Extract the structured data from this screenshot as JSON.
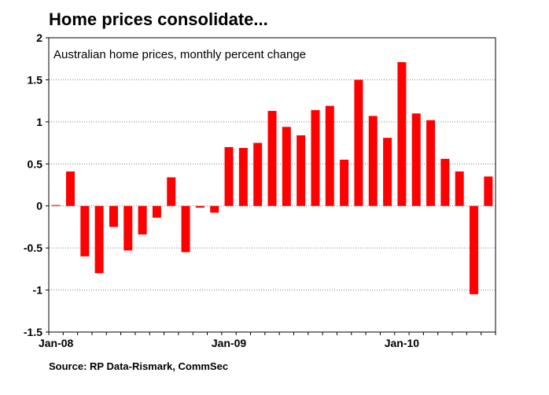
{
  "chart_data": {
    "type": "bar",
    "title": "Home prices consolidate...",
    "subtitle": "Australian home prices, monthly percent change",
    "source": "Source: RP Data-Rismark, CommSec",
    "xlabel": "",
    "ylabel": "",
    "ylim": [
      -1.5,
      2
    ],
    "yticks": [
      2,
      1.5,
      1,
      0.5,
      0,
      -0.5,
      -1,
      -1.5
    ],
    "ytick_labels": [
      "2",
      "1.5",
      "1",
      "0.5",
      "0",
      "-0.5",
      "-1",
      "-1.5"
    ],
    "grid": true,
    "bar_color": "#ff0000",
    "categories": [
      "Jan-08",
      "Feb-08",
      "Mar-08",
      "Apr-08",
      "May-08",
      "Jun-08",
      "Jul-08",
      "Aug-08",
      "Sep-08",
      "Oct-08",
      "Nov-08",
      "Dec-08",
      "Jan-09",
      "Feb-09",
      "Mar-09",
      "Apr-09",
      "May-09",
      "Jun-09",
      "Jul-09",
      "Aug-09",
      "Sep-09",
      "Oct-09",
      "Nov-09",
      "Dec-09",
      "Jan-10",
      "Feb-10",
      "Mar-10",
      "Apr-10",
      "May-10",
      "Jun-10",
      "Jul-10"
    ],
    "values": [
      0.01,
      0.41,
      -0.6,
      -0.8,
      -0.25,
      -0.53,
      -0.34,
      -0.14,
      0.34,
      -0.55,
      -0.02,
      -0.08,
      0.7,
      0.69,
      0.75,
      1.13,
      0.94,
      0.84,
      1.14,
      1.19,
      0.55,
      1.5,
      1.07,
      0.81,
      1.71,
      1.1,
      1.02,
      0.56,
      0.41,
      -1.05,
      0.35
    ],
    "x_tick_labels": [
      {
        "label": "Jan-08",
        "index": 0
      },
      {
        "label": "Jan-09",
        "index": 12
      },
      {
        "label": "Jan-10",
        "index": 24
      }
    ]
  }
}
